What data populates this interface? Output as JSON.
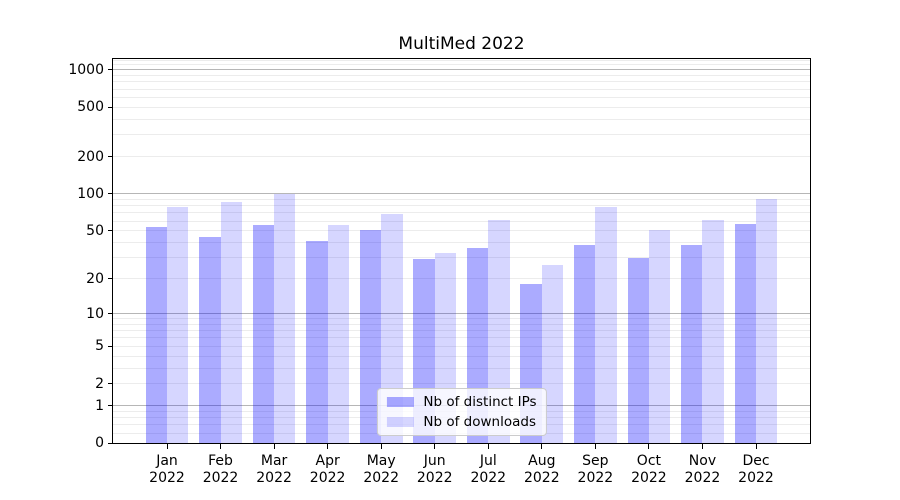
{
  "title": "MultiMed 2022",
  "colors": {
    "bar_distinct_ips": "rgba(0,0,255,0.33)",
    "bar_distinct_ips_hex": "#aaaaf8",
    "bar_downloads": "rgba(0,0,255,0.16)",
    "bar_downloads_hex": "#d6d6fa",
    "major_grid": "#b6b6b6",
    "minor_grid": "#ececec",
    "spine": "#000000",
    "legend_border": "#cccccc"
  },
  "chart_data": {
    "type": "bar",
    "title": "MultiMed 2022",
    "categories": [
      "Jan 2022",
      "Feb 2022",
      "Mar 2022",
      "Apr 2022",
      "May 2022",
      "Jun 2022",
      "Jul 2022",
      "Aug 2022",
      "Sep 2022",
      "Oct 2022",
      "Nov 2022",
      "Dec 2022"
    ],
    "x_tick_labels": [
      [
        "Jan",
        "2022"
      ],
      [
        "Feb",
        "2022"
      ],
      [
        "Mar",
        "2022"
      ],
      [
        "Apr",
        "2022"
      ],
      [
        "May",
        "2022"
      ],
      [
        "Jun",
        "2022"
      ],
      [
        "Jul",
        "2022"
      ],
      [
        "Aug",
        "2022"
      ],
      [
        "Sep",
        "2022"
      ],
      [
        "Oct",
        "2022"
      ],
      [
        "Nov",
        "2022"
      ],
      [
        "Dec",
        "2022"
      ]
    ],
    "series": [
      {
        "name": "Nb of distinct IPs",
        "color": "rgba(0,0,255,0.33)",
        "values": [
          54,
          44,
          56,
          41,
          51,
          29,
          36,
          18,
          38,
          30,
          38,
          57
        ]
      },
      {
        "name": "Nb of downloads",
        "color": "rgba(0,0,255,0.16)",
        "values": [
          78,
          85,
          100,
          56,
          68,
          33,
          61,
          26,
          78,
          51,
          61,
          90
        ]
      }
    ],
    "yscale": "log1p",
    "ylim": [
      0,
      1225
    ],
    "y_tick_values": [
      0,
      1,
      2,
      5,
      10,
      20,
      50,
      100,
      200,
      500,
      1000
    ],
    "y_tick_labels": [
      "0",
      "1",
      "2",
      "5",
      "10",
      "20",
      "50",
      "100",
      "200",
      "500",
      "1000"
    ],
    "y_major_gridlines": [
      1,
      10,
      100,
      1000
    ],
    "grid": "both",
    "legend": {
      "position": "lower center",
      "entries": [
        "Nb of distinct IPs",
        "Nb of downloads"
      ]
    }
  }
}
